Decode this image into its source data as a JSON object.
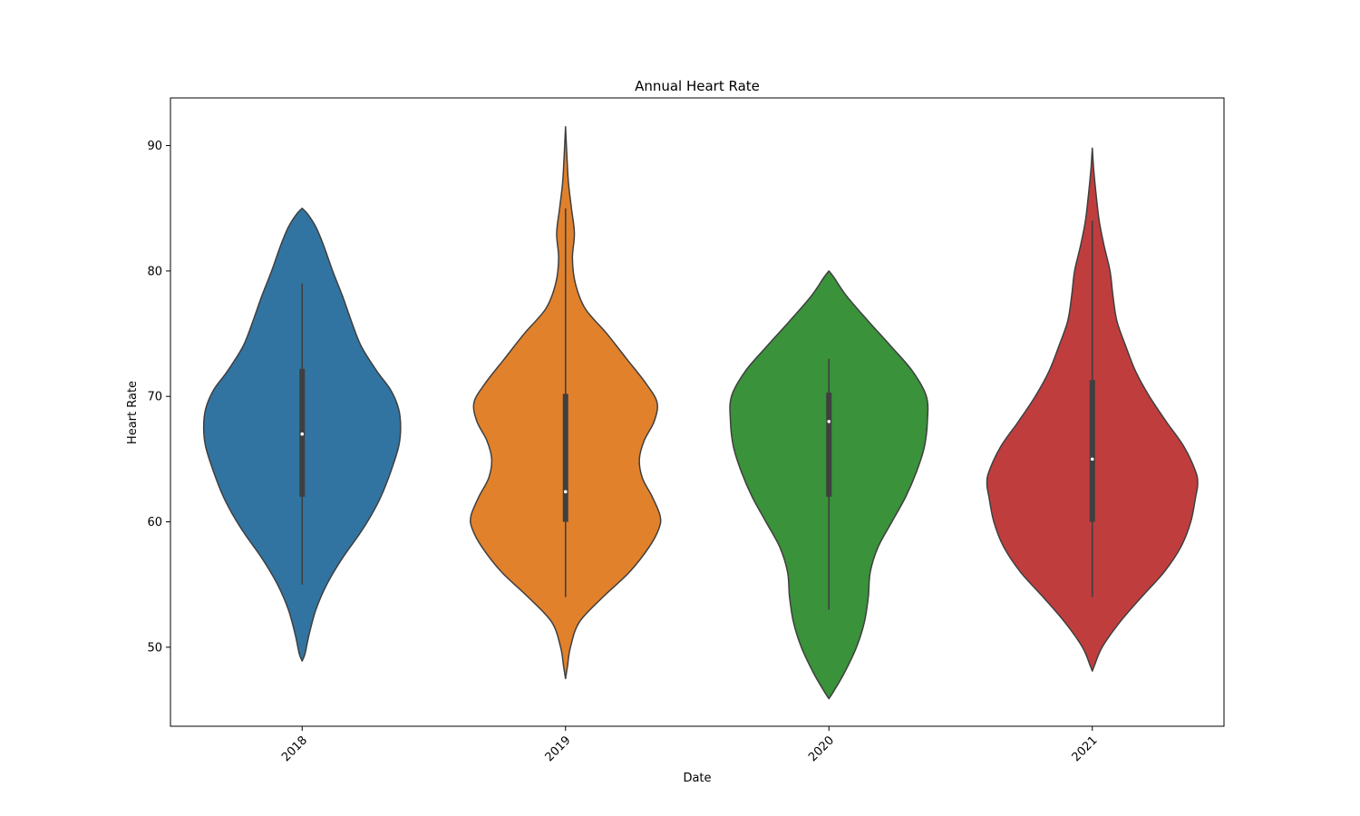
{
  "chart_data": {
    "type": "violin",
    "title": "Annual Heart Rate",
    "xlabel": "Date",
    "ylabel": "Heart Rate",
    "categories": [
      "2018",
      "2019",
      "2020",
      "2021"
    ],
    "ylim": [
      43.7,
      93.8
    ],
    "yticks": [
      50,
      60,
      70,
      80,
      90
    ],
    "grid": false,
    "legend": "none",
    "colors": [
      "#3274a1",
      "#e1812c",
      "#3a923a",
      "#c03d3e"
    ],
    "violins": [
      {
        "category": "2018",
        "median": 67,
        "q1": 62,
        "q3": 72.2,
        "whisker_low": 55,
        "whisker_high": 79,
        "profile": [
          [
            48.9,
            0.0
          ],
          [
            49.5,
            0.03
          ],
          [
            51,
            0.07
          ],
          [
            53,
            0.14
          ],
          [
            55,
            0.25
          ],
          [
            57,
            0.4
          ],
          [
            59,
            0.58
          ],
          [
            60.5,
            0.7
          ],
          [
            62,
            0.8
          ],
          [
            64,
            0.9
          ],
          [
            66,
            0.98
          ],
          [
            67.5,
            1.0
          ],
          [
            69,
            0.98
          ],
          [
            70.5,
            0.9
          ],
          [
            72,
            0.76
          ],
          [
            74,
            0.6
          ],
          [
            76,
            0.5
          ],
          [
            78,
            0.41
          ],
          [
            80,
            0.31
          ],
          [
            82,
            0.22
          ],
          [
            83.5,
            0.14
          ],
          [
            84.5,
            0.06
          ],
          [
            85,
            0.0
          ]
        ]
      },
      {
        "category": "2019",
        "median": 62.4,
        "q1": 60,
        "q3": 70.2,
        "whisker_low": 54,
        "whisker_high": 85,
        "profile": [
          [
            47.5,
            0.0
          ],
          [
            48.5,
            0.02
          ],
          [
            50,
            0.05
          ],
          [
            52,
            0.14
          ],
          [
            54,
            0.38
          ],
          [
            56,
            0.65
          ],
          [
            58,
            0.85
          ],
          [
            59.5,
            0.95
          ],
          [
            60.5,
            0.96
          ],
          [
            62,
            0.88
          ],
          [
            63.5,
            0.78
          ],
          [
            65,
            0.75
          ],
          [
            66.5,
            0.8
          ],
          [
            68,
            0.9
          ],
          [
            69.5,
            0.93
          ],
          [
            71,
            0.82
          ],
          [
            73,
            0.62
          ],
          [
            75,
            0.42
          ],
          [
            77,
            0.2
          ],
          [
            79,
            0.1
          ],
          [
            81,
            0.07
          ],
          [
            83,
            0.09
          ],
          [
            85,
            0.06
          ],
          [
            87,
            0.03
          ],
          [
            89,
            0.015
          ],
          [
            91.5,
            0.0
          ]
        ]
      },
      {
        "category": "2020",
        "median": 68,
        "q1": 62,
        "q3": 70.3,
        "whisker_low": 53,
        "whisker_high": 73,
        "profile": [
          [
            45.9,
            0.0
          ],
          [
            46.5,
            0.05
          ],
          [
            48,
            0.16
          ],
          [
            50,
            0.28
          ],
          [
            52,
            0.36
          ],
          [
            54,
            0.4
          ],
          [
            56,
            0.42
          ],
          [
            58,
            0.5
          ],
          [
            60,
            0.64
          ],
          [
            62,
            0.78
          ],
          [
            64,
            0.89
          ],
          [
            66,
            0.97
          ],
          [
            68,
            1.0
          ],
          [
            70,
            0.99
          ],
          [
            72,
            0.85
          ],
          [
            74,
            0.63
          ],
          [
            76,
            0.4
          ],
          [
            78,
            0.18
          ],
          [
            79.5,
            0.05
          ],
          [
            80,
            0.0
          ]
        ]
      },
      {
        "category": "2021",
        "median": 65,
        "q1": 60,
        "q3": 71.3,
        "whisker_low": 54,
        "whisker_high": 84,
        "profile": [
          [
            48.1,
            0.0
          ],
          [
            48.5,
            0.02
          ],
          [
            50,
            0.1
          ],
          [
            52,
            0.28
          ],
          [
            54,
            0.5
          ],
          [
            56,
            0.73
          ],
          [
            58,
            0.9
          ],
          [
            60,
            1.0
          ],
          [
            62,
            1.05
          ],
          [
            63,
            1.07
          ],
          [
            64,
            1.05
          ],
          [
            66,
            0.93
          ],
          [
            68,
            0.75
          ],
          [
            70,
            0.58
          ],
          [
            72,
            0.44
          ],
          [
            74,
            0.34
          ],
          [
            76,
            0.25
          ],
          [
            78,
            0.21
          ],
          [
            80,
            0.18
          ],
          [
            82,
            0.12
          ],
          [
            84,
            0.07
          ],
          [
            86,
            0.04
          ],
          [
            88,
            0.015
          ],
          [
            89.8,
            0.0
          ]
        ]
      }
    ]
  }
}
